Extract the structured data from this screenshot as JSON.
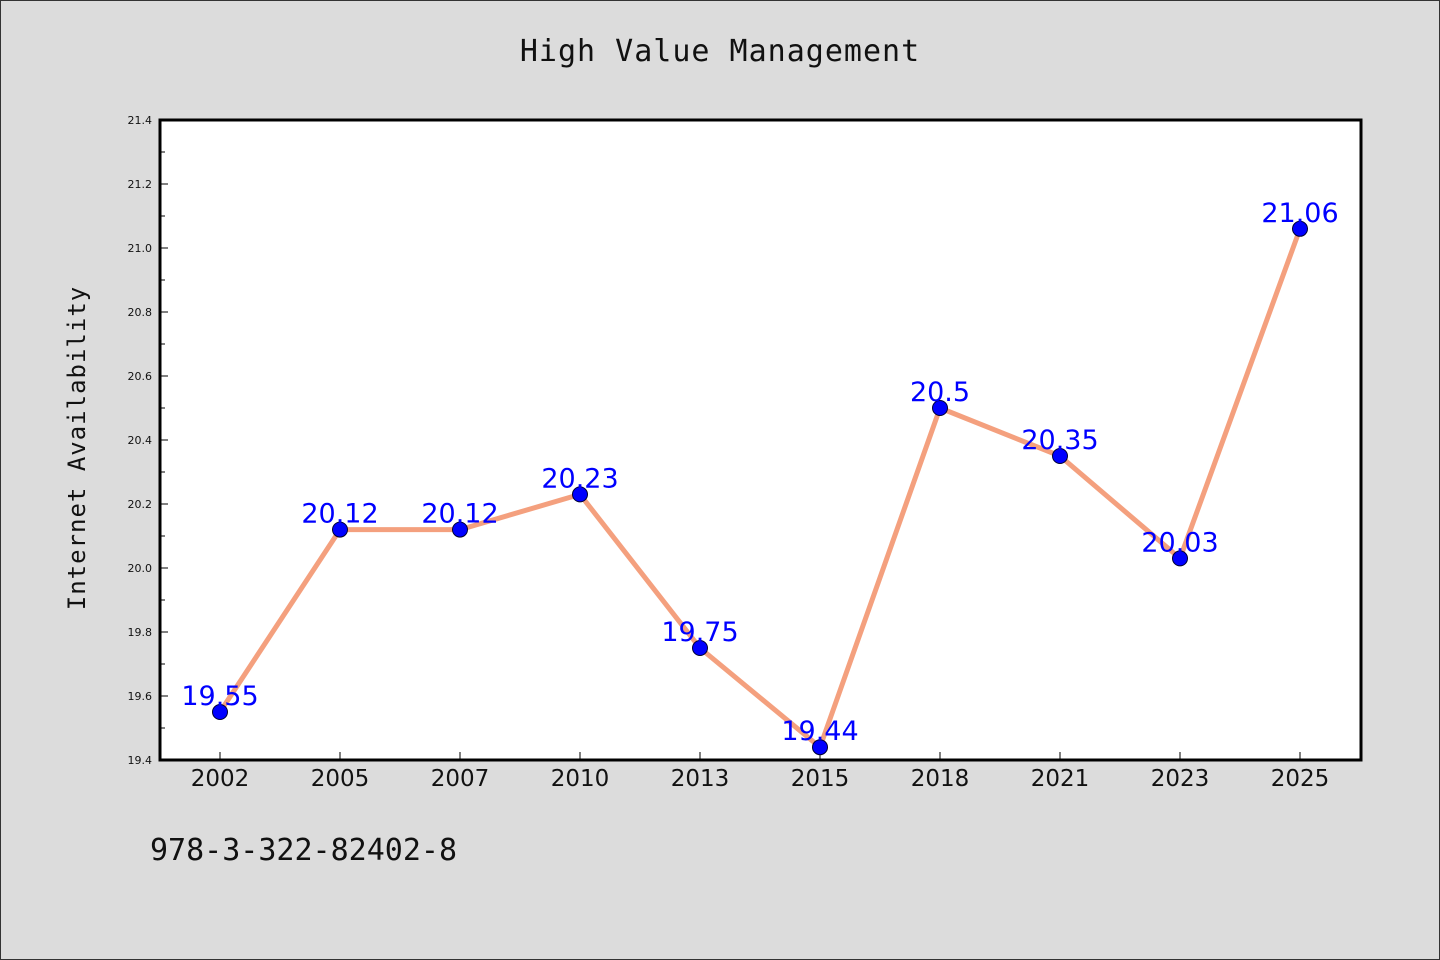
{
  "chart_data": {
    "type": "line",
    "title": "High Value Management",
    "ylabel": "Internet Availability",
    "xlabel": "",
    "categories": [
      "2002",
      "2005",
      "2007",
      "2010",
      "2013",
      "2015",
      "2018",
      "2021",
      "2023",
      "2025"
    ],
    "series": [
      {
        "values": [
          19.55,
          20.12,
          20.12,
          20.23,
          19.75,
          19.44,
          20.5,
          20.35,
          20.03,
          21.06
        ]
      }
    ],
    "data_labels": [
      "19.55",
      "20.12",
      "20.12",
      "20.23",
      "19.75",
      "19.44",
      "20.5",
      "20.35",
      "20.03",
      "21.06"
    ],
    "ylim": [
      19.4,
      21.4
    ],
    "yticks": [
      "19.4",
      "19.6",
      "19.8",
      "20.0",
      "20.2",
      "20.4",
      "20.6",
      "20.8",
      "21.0",
      "21.2",
      "21.4"
    ],
    "grid": false,
    "legend": "none",
    "colors": {
      "line": "#f4a07e",
      "marker": "#0000ff",
      "label": "#0000ff",
      "background": "#dcdcdc",
      "plot_bg": "#ffffff"
    }
  },
  "footer": {
    "isbn": "978-3-322-82402-8"
  }
}
